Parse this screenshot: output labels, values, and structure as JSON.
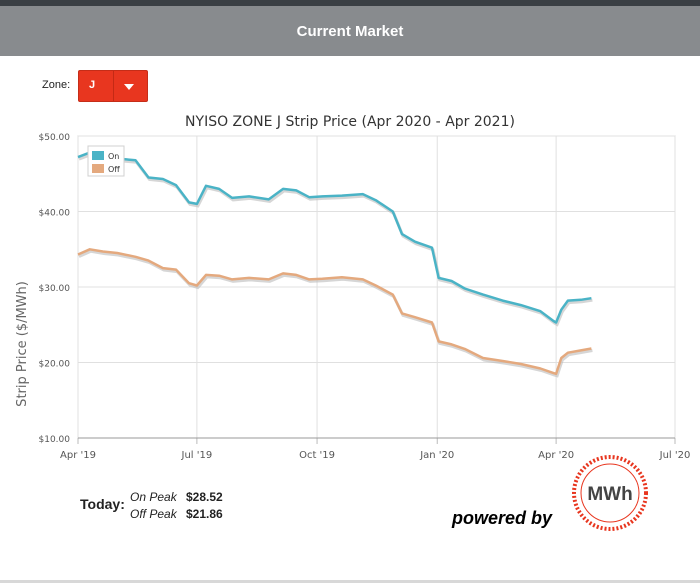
{
  "header": {
    "title": "Current Market"
  },
  "zone": {
    "label": "Zone:",
    "selected": "J"
  },
  "chart_data": {
    "type": "line",
    "title": "NYISO ZONE J Strip Price (Apr 2020 - Apr 2021)",
    "ylabel": "Strip Price ($/MWh)",
    "xlabel": "",
    "ylim": [
      10,
      50
    ],
    "xlim": [
      "2019-04-01",
      "2020-07-01"
    ],
    "y_ticks": [
      "$10.00",
      "$20.00",
      "$30.00",
      "$40.00",
      "$50.00"
    ],
    "x_ticks": [
      "Apr '19",
      "Jul '19",
      "Oct '19",
      "Jan '20",
      "Apr '20",
      "Jul '20"
    ],
    "grid": true,
    "legend_position": "top-left",
    "series": [
      {
        "name": "On",
        "color": "#4ab3c6",
        "points": [
          [
            "2019-04-01",
            47.2
          ],
          [
            "2019-04-10",
            47.8
          ],
          [
            "2019-04-20",
            47.5
          ],
          [
            "2019-05-01",
            47.0
          ],
          [
            "2019-05-15",
            46.8
          ],
          [
            "2019-05-25",
            44.5
          ],
          [
            "2019-06-05",
            44.3
          ],
          [
            "2019-06-15",
            43.5
          ],
          [
            "2019-06-25",
            41.2
          ],
          [
            "2019-07-01",
            41.0
          ],
          [
            "2019-07-08",
            43.4
          ],
          [
            "2019-07-18",
            43.0
          ],
          [
            "2019-07-28",
            41.8
          ],
          [
            "2019-08-10",
            42.0
          ],
          [
            "2019-08-25",
            41.6
          ],
          [
            "2019-09-05",
            43.0
          ],
          [
            "2019-09-15",
            42.8
          ],
          [
            "2019-09-25",
            41.9
          ],
          [
            "2019-10-05",
            42.0
          ],
          [
            "2019-10-20",
            42.1
          ],
          [
            "2019-11-05",
            42.3
          ],
          [
            "2019-11-15",
            41.5
          ],
          [
            "2019-11-28",
            40.0
          ],
          [
            "2019-12-05",
            37.0
          ],
          [
            "2019-12-15",
            36.0
          ],
          [
            "2019-12-28",
            35.2
          ],
          [
            "2020-01-02",
            31.2
          ],
          [
            "2020-01-12",
            30.8
          ],
          [
            "2020-01-22",
            29.8
          ],
          [
            "2020-02-05",
            29.0
          ],
          [
            "2020-02-20",
            28.2
          ],
          [
            "2020-03-05",
            27.6
          ],
          [
            "2020-03-20",
            26.8
          ],
          [
            "2020-03-30",
            25.5
          ],
          [
            "2020-04-01",
            25.3
          ],
          [
            "2020-04-05",
            27.0
          ],
          [
            "2020-04-10",
            28.2
          ],
          [
            "2020-04-20",
            28.3
          ],
          [
            "2020-04-28",
            28.52
          ]
        ]
      },
      {
        "name": "Off",
        "color": "#e4a97e",
        "points": [
          [
            "2019-04-01",
            34.3
          ],
          [
            "2019-04-10",
            35.0
          ],
          [
            "2019-04-20",
            34.7
          ],
          [
            "2019-05-01",
            34.5
          ],
          [
            "2019-05-15",
            34.0
          ],
          [
            "2019-05-25",
            33.5
          ],
          [
            "2019-06-05",
            32.5
          ],
          [
            "2019-06-15",
            32.3
          ],
          [
            "2019-06-25",
            30.5
          ],
          [
            "2019-07-01",
            30.2
          ],
          [
            "2019-07-08",
            31.6
          ],
          [
            "2019-07-18",
            31.5
          ],
          [
            "2019-07-28",
            31.0
          ],
          [
            "2019-08-10",
            31.2
          ],
          [
            "2019-08-25",
            31.0
          ],
          [
            "2019-09-05",
            31.8
          ],
          [
            "2019-09-15",
            31.6
          ],
          [
            "2019-09-25",
            31.0
          ],
          [
            "2019-10-05",
            31.1
          ],
          [
            "2019-10-20",
            31.3
          ],
          [
            "2019-11-05",
            31.0
          ],
          [
            "2019-11-15",
            30.2
          ],
          [
            "2019-11-28",
            29.0
          ],
          [
            "2019-12-05",
            26.5
          ],
          [
            "2019-12-15",
            26.0
          ],
          [
            "2019-12-28",
            25.3
          ],
          [
            "2020-01-02",
            22.8
          ],
          [
            "2020-01-12",
            22.4
          ],
          [
            "2020-01-22",
            21.8
          ],
          [
            "2020-02-05",
            20.6
          ],
          [
            "2020-02-20",
            20.2
          ],
          [
            "2020-03-05",
            19.8
          ],
          [
            "2020-03-20",
            19.2
          ],
          [
            "2020-03-30",
            18.6
          ],
          [
            "2020-04-01",
            18.5
          ],
          [
            "2020-04-05",
            20.6
          ],
          [
            "2020-04-10",
            21.3
          ],
          [
            "2020-04-20",
            21.6
          ],
          [
            "2020-04-28",
            21.86
          ]
        ]
      }
    ]
  },
  "today": {
    "label": "Today:",
    "on_peak_label": "On Peak",
    "on_peak_value": "$28.52",
    "off_peak_label": "Off Peak",
    "off_peak_value": "$21.86"
  },
  "brand": {
    "powered_by": "powered by",
    "logo_text": "MWh",
    "accent": "#e8361f"
  }
}
